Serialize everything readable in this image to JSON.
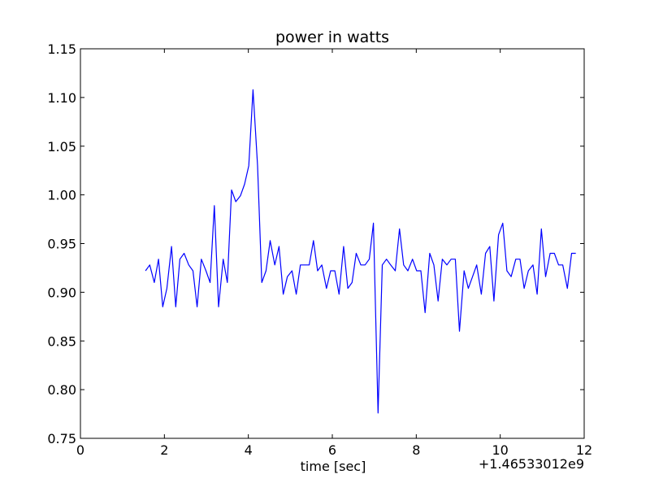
{
  "chart_data": {
    "type": "line",
    "title": "power in watts",
    "xlabel": "time [sec]",
    "ylabel": "",
    "x_offset_label": "+1.46533012e9",
    "xlim": [
      0,
      12
    ],
    "ylim": [
      0.75,
      1.15
    ],
    "x_ticks": [
      0,
      2,
      4,
      6,
      8,
      10,
      12
    ],
    "x_tick_labels": [
      "0",
      "2",
      "4",
      "6",
      "8",
      "10",
      "12"
    ],
    "y_ticks": [
      0.75,
      0.8,
      0.85,
      0.9,
      0.95,
      1.0,
      1.05,
      1.1,
      1.15
    ],
    "y_tick_labels": [
      "0.75",
      "0.80",
      "0.85",
      "0.90",
      "0.95",
      "1.00",
      "1.05",
      "1.10",
      "1.15"
    ],
    "grid": false,
    "legend": "none",
    "series": [
      {
        "color": "#0000ff",
        "x": [
          1.55,
          1.65,
          1.76,
          1.86,
          1.96,
          2.06,
          2.17,
          2.27,
          2.37,
          2.47,
          2.58,
          2.68,
          2.78,
          2.88,
          2.99,
          3.09,
          3.19,
          3.29,
          3.4,
          3.5,
          3.6,
          3.7,
          3.81,
          3.91,
          4.01,
          4.11,
          4.22,
          4.32,
          4.42,
          4.52,
          4.63,
          4.73,
          4.83,
          4.93,
          5.04,
          5.14,
          5.24,
          5.34,
          5.45,
          5.55,
          5.65,
          5.75,
          5.86,
          5.96,
          6.06,
          6.16,
          6.27,
          6.37,
          6.47,
          6.57,
          6.68,
          6.78,
          6.88,
          6.98,
          7.09,
          7.19,
          7.29,
          7.39,
          7.5,
          7.6,
          7.7,
          7.8,
          7.91,
          8.01,
          8.11,
          8.21,
          8.32,
          8.42,
          8.52,
          8.62,
          8.73,
          8.83,
          8.93,
          9.03,
          9.14,
          9.24,
          9.34,
          9.44,
          9.55,
          9.65,
          9.75,
          9.85,
          9.96,
          10.06,
          10.16,
          10.26,
          10.37,
          10.47,
          10.57,
          10.67,
          10.78,
          10.88,
          10.98,
          11.08,
          11.19,
          11.29,
          11.39,
          11.49,
          11.6,
          11.7,
          11.8
        ],
        "y": [
          0.922,
          0.928,
          0.91,
          0.934,
          0.885,
          0.904,
          0.947,
          0.885,
          0.934,
          0.94,
          0.928,
          0.922,
          0.885,
          0.934,
          0.922,
          0.91,
          0.989,
          0.885,
          0.934,
          0.91,
          1.005,
          0.993,
          0.999,
          1.011,
          1.03,
          1.108,
          1.03,
          0.91,
          0.922,
          0.953,
          0.928,
          0.947,
          0.898,
          0.916,
          0.922,
          0.898,
          0.928,
          0.928,
          0.928,
          0.953,
          0.922,
          0.928,
          0.904,
          0.922,
          0.922,
          0.898,
          0.947,
          0.904,
          0.91,
          0.94,
          0.928,
          0.928,
          0.934,
          0.971,
          0.776,
          0.928,
          0.934,
          0.928,
          0.922,
          0.965,
          0.928,
          0.922,
          0.934,
          0.922,
          0.922,
          0.879,
          0.94,
          0.928,
          0.891,
          0.934,
          0.928,
          0.934,
          0.934,
          0.86,
          0.922,
          0.904,
          0.916,
          0.928,
          0.898,
          0.94,
          0.947,
          0.891,
          0.959,
          0.971,
          0.922,
          0.916,
          0.934,
          0.934,
          0.904,
          0.922,
          0.928,
          0.898,
          0.965,
          0.916,
          0.94,
          0.94,
          0.928,
          0.928,
          0.904,
          0.94,
          0.94
        ]
      }
    ]
  }
}
